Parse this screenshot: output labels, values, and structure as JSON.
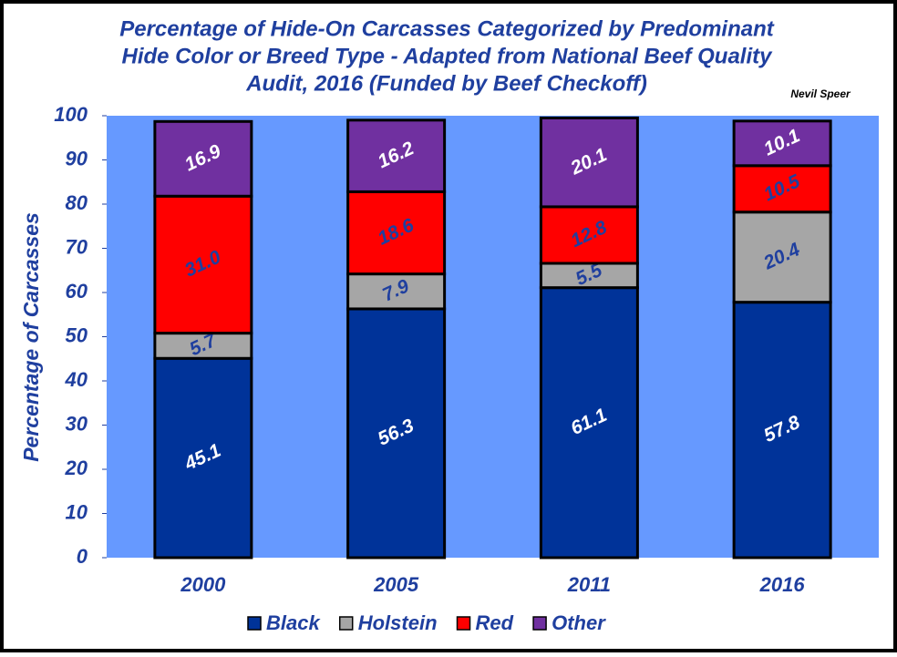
{
  "chart_data": {
    "type": "stacked_bar",
    "title": [
      "Percentage of Hide-On Carcasses Categorized by Predominant",
      "Hide Color or Breed Type - Adapted from National Beef Quality",
      "Audit, 2016 (Funded by Beef Checkoff)"
    ],
    "annotation": "Nevil Speer",
    "y_label": "Percentage of Carcasses",
    "categories": [
      "2000",
      "2005",
      "2011",
      "2016"
    ],
    "series": [
      {
        "name": "Black",
        "color": "#003399",
        "label_color": "#ffffff",
        "values": [
          45.1,
          56.3,
          61.1,
          57.8
        ]
      },
      {
        "name": "Holstein",
        "color": "#a6a6a6",
        "label_color": "#1f3f9f",
        "values": [
          5.7,
          7.9,
          5.5,
          20.4
        ]
      },
      {
        "name": "Red",
        "color": "#ff0000",
        "label_color": "#1f3f9f",
        "values": [
          31.0,
          18.6,
          12.8,
          10.5
        ],
        "value_labels": [
          "31.0",
          "18.6",
          "12.8",
          "10.5"
        ]
      },
      {
        "name": "Other",
        "color": "#7030a0",
        "label_color": "#ffffff",
        "values": [
          16.9,
          16.2,
          20.1,
          10.1
        ]
      }
    ],
    "ylim": [
      0,
      100
    ],
    "yticks": [
      0,
      10,
      20,
      30,
      40,
      50,
      60,
      70,
      80,
      90,
      100
    ],
    "grid": false,
    "background": "#6699ff",
    "legend": "bottom"
  }
}
